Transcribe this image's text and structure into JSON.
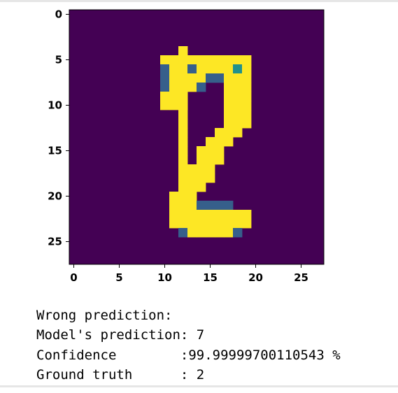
{
  "chart_data": {
    "type": "heatmap",
    "title": "",
    "xlabel": "",
    "ylabel": "",
    "x_ticks": [
      "0",
      "5",
      "10",
      "15",
      "20",
      "25"
    ],
    "y_ticks": [
      "0",
      "5",
      "10",
      "15",
      "20",
      "25"
    ],
    "xlim": [
      -0.5,
      27.5
    ],
    "ylim": [
      27.5,
      -0.5
    ],
    "colormap": "viridis",
    "value_range": [
      0,
      1
    ],
    "grid": false,
    "width": 28,
    "height": 28,
    "pixels": [
      [
        4,
        12,
        1
      ],
      [
        5,
        12,
        1
      ],
      [
        6,
        12,
        1
      ],
      [
        7,
        12,
        1
      ],
      [
        8,
        12,
        1
      ],
      [
        9,
        12,
        1
      ],
      [
        10,
        12,
        1
      ],
      [
        11,
        12,
        1
      ],
      [
        12,
        12,
        1
      ],
      [
        13,
        12,
        1
      ],
      [
        14,
        12,
        1
      ],
      [
        15,
        12,
        1
      ],
      [
        16,
        12,
        1
      ],
      [
        17,
        12,
        1
      ],
      [
        18,
        12,
        1
      ],
      [
        5,
        10,
        1
      ],
      [
        5,
        11,
        1
      ],
      [
        5,
        13,
        1
      ],
      [
        5,
        14,
        1
      ],
      [
        5,
        15,
        1
      ],
      [
        5,
        16,
        1
      ],
      [
        5,
        17,
        1
      ],
      [
        5,
        18,
        1
      ],
      [
        5,
        19,
        1
      ],
      [
        6,
        10,
        0.3
      ],
      [
        6,
        11,
        1
      ],
      [
        6,
        12,
        1
      ],
      [
        6,
        13,
        0.3
      ],
      [
        6,
        14,
        1
      ],
      [
        6,
        15,
        1
      ],
      [
        6,
        16,
        1
      ],
      [
        6,
        17,
        1
      ],
      [
        6,
        18,
        0.5
      ],
      [
        6,
        19,
        1
      ],
      [
        7,
        10,
        0.3
      ],
      [
        7,
        11,
        1
      ],
      [
        7,
        12,
        1
      ],
      [
        7,
        13,
        1
      ],
      [
        7,
        14,
        1
      ],
      [
        7,
        15,
        0.3
      ],
      [
        7,
        16,
        0.3
      ],
      [
        7,
        17,
        1
      ],
      [
        7,
        18,
        1
      ],
      [
        7,
        19,
        1
      ],
      [
        8,
        10,
        0.3
      ],
      [
        8,
        11,
        1
      ],
      [
        8,
        12,
        1
      ],
      [
        8,
        13,
        1
      ],
      [
        8,
        14,
        0.3
      ],
      [
        8,
        17,
        1
      ],
      [
        8,
        18,
        1
      ],
      [
        8,
        19,
        1
      ],
      [
        9,
        10,
        1
      ],
      [
        9,
        11,
        1
      ],
      [
        9,
        12,
        1
      ],
      [
        9,
        17,
        1
      ],
      [
        9,
        18,
        1
      ],
      [
        9,
        19,
        1
      ],
      [
        10,
        10,
        1
      ],
      [
        10,
        11,
        1
      ],
      [
        10,
        12,
        1
      ],
      [
        10,
        17,
        1
      ],
      [
        10,
        18,
        1
      ],
      [
        10,
        19,
        1
      ],
      [
        11,
        17,
        1
      ],
      [
        11,
        18,
        1
      ],
      [
        11,
        19,
        1
      ],
      [
        12,
        17,
        1
      ],
      [
        12,
        18,
        1
      ],
      [
        12,
        19,
        1
      ],
      [
        13,
        16,
        1
      ],
      [
        13,
        17,
        1
      ],
      [
        13,
        18,
        1
      ],
      [
        14,
        15,
        1
      ],
      [
        14,
        16,
        1
      ],
      [
        14,
        17,
        1
      ],
      [
        15,
        14,
        1
      ],
      [
        15,
        15,
        1
      ],
      [
        15,
        16,
        1
      ],
      [
        16,
        14,
        1
      ],
      [
        16,
        15,
        1
      ],
      [
        16,
        16,
        1
      ],
      [
        17,
        13,
        1
      ],
      [
        17,
        14,
        1
      ],
      [
        17,
        15,
        1
      ],
      [
        18,
        13,
        1
      ],
      [
        18,
        14,
        1
      ],
      [
        18,
        15,
        1
      ],
      [
        19,
        12,
        1
      ],
      [
        19,
        13,
        1
      ],
      [
        19,
        14,
        1
      ],
      [
        20,
        11,
        1
      ],
      [
        20,
        12,
        1
      ],
      [
        20,
        13,
        1
      ],
      [
        21,
        11,
        1
      ],
      [
        21,
        12,
        1
      ],
      [
        21,
        13,
        1
      ],
      [
        21,
        14,
        0.3
      ],
      [
        21,
        15,
        0.3
      ],
      [
        21,
        16,
        0.3
      ],
      [
        21,
        17,
        0.3
      ],
      [
        22,
        11,
        1
      ],
      [
        22,
        12,
        1
      ],
      [
        22,
        13,
        1
      ],
      [
        22,
        14,
        1
      ],
      [
        22,
        15,
        1
      ],
      [
        22,
        16,
        1
      ],
      [
        22,
        17,
        1
      ],
      [
        22,
        18,
        1
      ],
      [
        22,
        19,
        1
      ],
      [
        23,
        11,
        1
      ],
      [
        23,
        12,
        1
      ],
      [
        23,
        13,
        1
      ],
      [
        23,
        14,
        1
      ],
      [
        23,
        15,
        1
      ],
      [
        23,
        16,
        1
      ],
      [
        23,
        17,
        1
      ],
      [
        23,
        18,
        1
      ],
      [
        23,
        19,
        1
      ],
      [
        24,
        12,
        0.3
      ],
      [
        24,
        13,
        1
      ],
      [
        24,
        14,
        1
      ],
      [
        24,
        15,
        1
      ],
      [
        24,
        16,
        1
      ],
      [
        24,
        17,
        1
      ],
      [
        24,
        18,
        0.3
      ]
    ]
  },
  "output": {
    "line1": "Wrong prediction:",
    "line2": "Model's prediction: 7",
    "line3": "Confidence        :99.99999700110543 %",
    "line4": "Ground truth      : 2"
  }
}
